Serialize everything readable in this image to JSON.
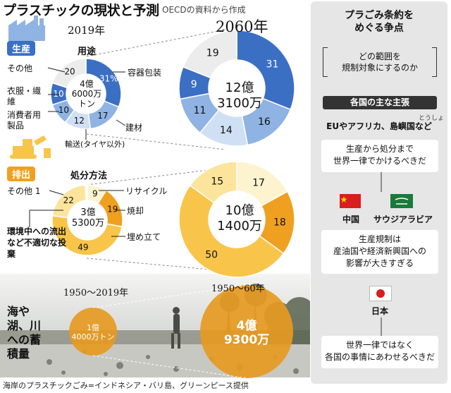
{
  "header": {
    "title": "プラスチックの現状と予測",
    "source": "OECDの資料から作成"
  },
  "production": {
    "badge": "生産",
    "section_label": "用途",
    "year_left": "2019年",
    "year_right": "2060年",
    "center_2019": [
      "4億",
      "6000万",
      "トン"
    ],
    "center_2060": [
      "12億",
      "3100万"
    ],
    "category_labels": {
      "packaging": "容器包装",
      "construction": "建材",
      "transport": "輸送(タイヤ以外)",
      "consumer": "消費者用製品",
      "textiles": "衣服・繊維",
      "other": "その他"
    }
  },
  "disposal": {
    "badge": "排出",
    "section_label": "処分方法",
    "center_2019": [
      "3億",
      "5300万"
    ],
    "center_2060": [
      "10億",
      "1400万"
    ],
    "category_labels": {
      "recycle": "リサイクル",
      "incineration": "焼却",
      "landfill": "埋め立て",
      "mismanaged": "環境中への流出など不適切な投棄",
      "other": "その他"
    },
    "other_value_label": "1"
  },
  "accumulation": {
    "label": "海や湖、川への蓄積量",
    "period_left": "1950～2019年",
    "period_right": "1950～60年",
    "value_left": [
      "1億",
      "4000万トン"
    ],
    "value_right": [
      "4億",
      "9300万"
    ]
  },
  "right_panel": {
    "title": [
      "プラごみ条約を",
      "めぐる争点"
    ],
    "question": [
      "どの範囲を",
      "規制対象にするのか"
    ],
    "section": "各国の主な主張",
    "group1": {
      "label": "EUやアフリカ、島嶼国など",
      "ruby": "とうしょ",
      "claim": [
        "生産から処分まで",
        "世界一律でかけるべきだ"
      ]
    },
    "group2": {
      "countries": [
        "中国",
        "サウジアラビア"
      ],
      "claim": [
        "生産規制は",
        "産油国や経済新興国への",
        "影響が大きすぎる"
      ]
    },
    "group3": {
      "country": "日本",
      "claim": [
        "世界一律ではなく",
        "各国の事情にあわせるべきだ"
      ]
    }
  },
  "photo_caption": "海岸のプラスチックごみ=インドネシア・バリ島、グリーンピース提供",
  "colors": {
    "blue_dark": "#3a6fc4",
    "blue_mid": "#8fb3e3",
    "blue_light": "#cfe0f5",
    "gray_light": "#ececec",
    "orange_dark": "#f0a020",
    "orange_mid": "#f8c44a",
    "orange_light": "#fce49a",
    "pale": "#fdf3cf",
    "accum_fill": "#e69a22"
  },
  "chart_data": [
    {
      "type": "pie",
      "title": "用途 2019年",
      "unit": "%",
      "total": "4億6000万トン",
      "categories": [
        "容器包装",
        "建材",
        "輸送(タイヤ以外)",
        "消費者用製品",
        "衣服・繊維",
        "その他"
      ],
      "values": [
        31,
        17,
        12,
        10,
        10,
        20
      ]
    },
    {
      "type": "pie",
      "title": "用途 2060年",
      "unit": "%",
      "total": "12億3100万",
      "categories": [
        "容器包装",
        "建材",
        "輸送(タイヤ以外)",
        "消費者用製品",
        "衣服・繊維",
        "その他"
      ],
      "values": [
        31,
        16,
        14,
        11,
        9,
        19
      ]
    },
    {
      "type": "pie",
      "title": "処分方法 2019年",
      "unit": "%",
      "total": "3億5300万",
      "categories": [
        "リサイクル",
        "焼却",
        "埋め立て",
        "環境中への流出など不適切な投棄",
        "その他"
      ],
      "values": [
        9,
        19,
        49,
        22,
        1
      ]
    },
    {
      "type": "pie",
      "title": "処分方法 2060年",
      "unit": "%",
      "total": "10億1400万",
      "categories": [
        "リサイクル",
        "焼却",
        "埋め立て",
        "環境中への流出など不適切な投棄",
        "その他"
      ],
      "values": [
        17,
        18,
        50,
        15,
        0
      ]
    }
  ]
}
